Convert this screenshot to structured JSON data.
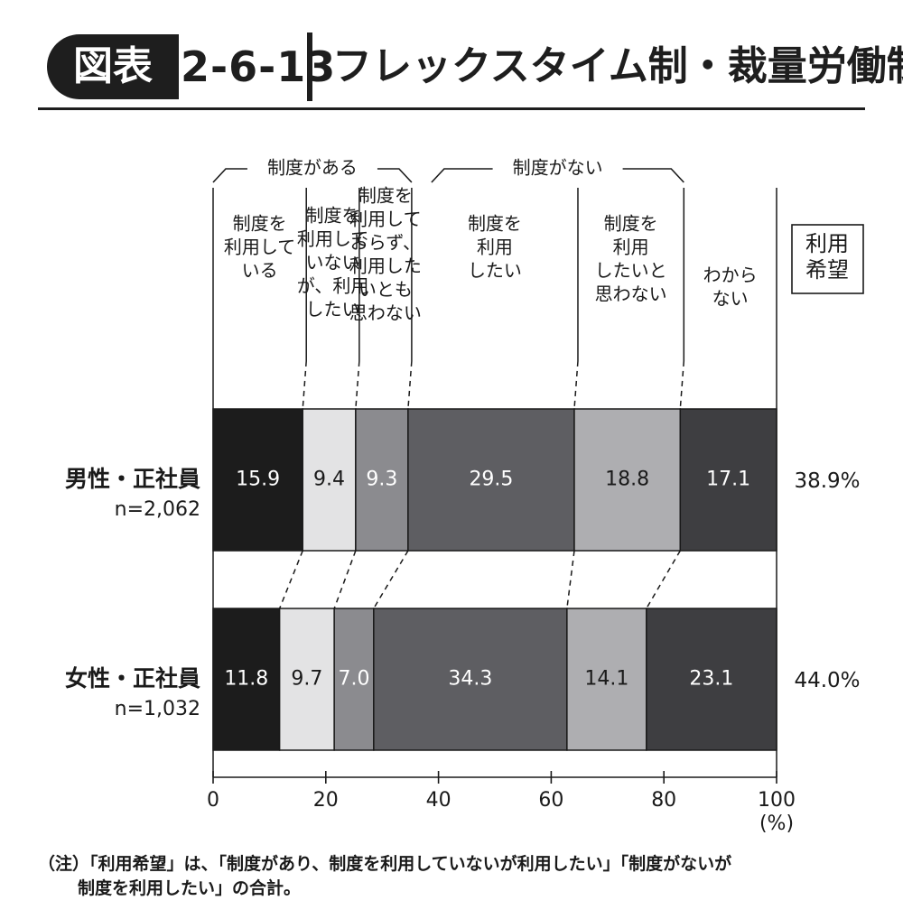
{
  "title": {
    "badge": "図表",
    "number": "2-6-13",
    "text": "フレックスタイム制・裁量労働制"
  },
  "chart_data": {
    "type": "bar",
    "stacked": true,
    "orientation": "horizontal",
    "xlim": [
      0,
      100
    ],
    "x_ticks": [
      "0",
      "20",
      "40",
      "60",
      "80",
      "100"
    ],
    "x_unit": "(%)",
    "groups": [
      {
        "label": "制度がある"
      },
      {
        "label": "制度がない"
      }
    ],
    "segment_labels": [
      [
        "制度を",
        "利用して",
        "いる"
      ],
      [
        "制度を",
        "利用して",
        "いない",
        "が、利用",
        "したい"
      ],
      [
        "制度を",
        "利用して",
        "おらず、",
        "利用した",
        "いとも",
        "思わない"
      ],
      [
        "制度を",
        "利用",
        "したい"
      ],
      [
        "制度を",
        "利用",
        "したいと",
        "思わない"
      ],
      [
        "わから",
        "ない"
      ]
    ],
    "segment_colors": [
      "#1c1c1c",
      "#e3e3e4",
      "#8b8b8f",
      "#5e5e62",
      "#aeaeb1",
      "#3e3e41"
    ],
    "segment_text_colors": [
      "#ffffff",
      "#1a1a1a",
      "#ffffff",
      "#ffffff",
      "#1a1a1a",
      "#ffffff"
    ],
    "rows": [
      {
        "label": "男性・正社員",
        "n": "n=2,062",
        "values": [
          15.9,
          9.4,
          9.3,
          29.5,
          18.8,
          17.1
        ],
        "value_labels": [
          "15.9",
          "9.4",
          "9.3",
          "29.5",
          "18.8",
          "17.1"
        ],
        "desire": "38.9%"
      },
      {
        "label": "女性・正社員",
        "n": "n=1,032",
        "values": [
          11.8,
          9.7,
          7.0,
          34.3,
          14.1,
          23.1
        ],
        "value_labels": [
          "11.8",
          "9.7",
          "7.0",
          "34.3",
          "14.1",
          "23.1"
        ],
        "desire": "44.0%"
      }
    ],
    "desire_header": [
      "利用",
      "希望"
    ]
  },
  "note": {
    "line1": "（注）「利用希望」は、「制度があり、制度を利用していないが利用したい」「制度がないが",
    "line2": "制度を利用したい」の合計。"
  }
}
